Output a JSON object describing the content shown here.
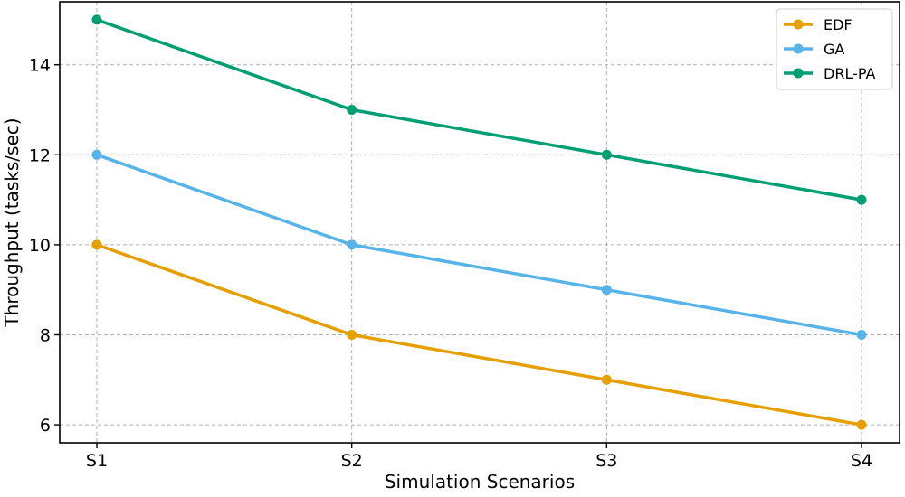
{
  "chart_data": {
    "type": "line",
    "title": "",
    "xlabel": "Simulation Scenarios",
    "ylabel": "Throughput (tasks/sec)",
    "categories": [
      "S1",
      "S2",
      "S3",
      "S4"
    ],
    "ylim": [
      5.6,
      15.4
    ],
    "yticks": [
      6,
      8,
      10,
      12,
      14
    ],
    "grid": true,
    "legend_position": "top-right",
    "series": [
      {
        "name": "EDF",
        "color": "#e69f00",
        "values": [
          10,
          8,
          7,
          6
        ]
      },
      {
        "name": "GA",
        "color": "#56b4e9",
        "values": [
          12,
          10,
          9,
          8
        ]
      },
      {
        "name": "DRL-PA",
        "color": "#009e73",
        "values": [
          15,
          13,
          12,
          11
        ]
      }
    ]
  }
}
